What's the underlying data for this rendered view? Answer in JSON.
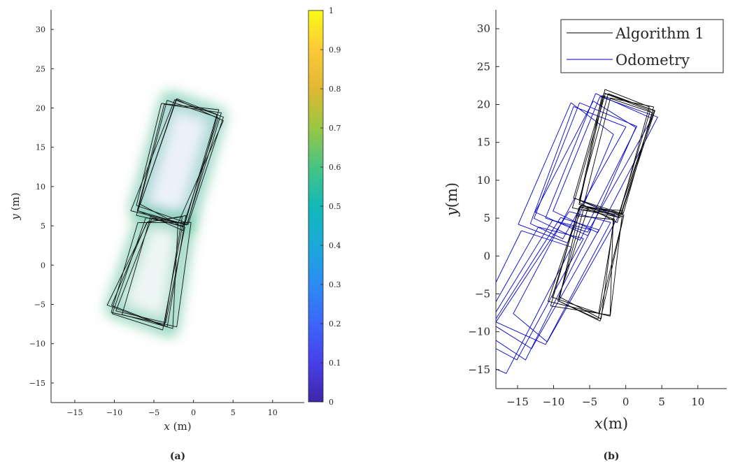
{
  "chart_data": [
    {
      "panel": "a",
      "type": "heatmap",
      "caption": "(a)",
      "xlabel_var": "x",
      "xlabel_unit": " (m)",
      "ylabel_var": "y",
      "ylabel_unit": " (m)",
      "xlim": [
        -18,
        14
      ],
      "ylim": [
        -17.5,
        32.5
      ],
      "xticks": [
        "−15",
        "−10",
        "−5",
        "0",
        "5",
        "10"
      ],
      "xtick_values": [
        -15,
        -10,
        -5,
        0,
        5,
        10
      ],
      "yticks": [
        "−15",
        "−10",
        "−5",
        "0",
        "5",
        "10",
        "15",
        "20",
        "25",
        "30"
      ],
      "ytick_values": [
        -15,
        -10,
        -5,
        0,
        5,
        10,
        15,
        20,
        25,
        30
      ],
      "colorbar": {
        "range": [
          0,
          1
        ],
        "ticks": [
          "0",
          "0.1",
          "0.2",
          "0.3",
          "0.4",
          "0.5",
          "0.6",
          "0.7",
          "0.8",
          "0.9",
          "1"
        ],
        "tick_values": [
          0,
          0.1,
          0.2,
          0.3,
          0.4,
          0.5,
          0.6,
          0.7,
          0.8,
          0.9,
          1
        ],
        "colormap": "parula"
      },
      "upper_loop": [
        [
          -3,
          21
        ],
        [
          3,
          19
        ],
        [
          -1,
          5
        ],
        [
          -7,
          7
        ]
      ],
      "lower_loop": [
        [
          -6,
          6
        ],
        [
          -1,
          5.5
        ],
        [
          -3,
          -8
        ],
        [
          -10,
          -5.5
        ]
      ],
      "loop_count": 6,
      "grid": false
    },
    {
      "panel": "b",
      "type": "line",
      "caption": "(b)",
      "xlabel_var": "x",
      "xlabel_unit": "(m)",
      "ylabel_var": "y",
      "ylabel_unit": "(m)",
      "xlim": [
        -18,
        14
      ],
      "ylim": [
        -17.5,
        32.5
      ],
      "xticks": [
        "−15",
        "−10",
        "−5",
        "0",
        "5",
        "10"
      ],
      "xtick_values": [
        -15,
        -10,
        -5,
        0,
        5,
        10
      ],
      "yticks": [
        "−15",
        "−10",
        "−5",
        "0",
        "5",
        "10",
        "15",
        "20",
        "25",
        "30"
      ],
      "yticks_values": [
        -15,
        -10,
        -5,
        0,
        5,
        10,
        15,
        20,
        25,
        30
      ],
      "legend_position": "top-right",
      "grid": false,
      "series": [
        {
          "name": "Algorithm 1",
          "color": "#000000",
          "upper_loop": [
            [
              -3,
              21.5
            ],
            [
              3.5,
              19.5
            ],
            [
              -1,
              5
            ],
            [
              -6.5,
              7
            ]
          ],
          "lower_loop": [
            [
              -6,
              6
            ],
            [
              -1,
              5.5
            ],
            [
              -3,
              -8
            ],
            [
              -10,
              -6
            ]
          ],
          "loop_count": 6
        },
        {
          "name": "Odometry",
          "color": "#0000cc",
          "upper_loop": [
            [
              -3,
              21.5
            ],
            [
              4,
              18
            ],
            [
              -4,
              3
            ],
            [
              -10,
              6
            ]
          ],
          "lower_loop": [
            [
              -7,
              7
            ],
            [
              -1,
              5.5
            ],
            [
              -10,
              -11
            ],
            [
              -16,
              -8
            ]
          ],
          "loop_count": 6,
          "drift_per_loop": [
            -1.1,
            -0.7
          ]
        }
      ]
    }
  ]
}
